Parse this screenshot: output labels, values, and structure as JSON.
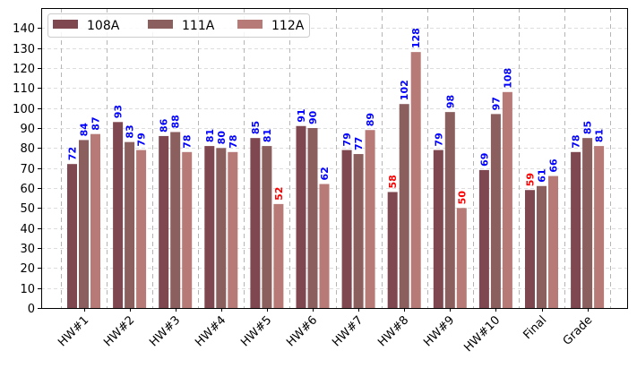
{
  "chart_data": {
    "type": "bar",
    "title": "",
    "xlabel": "",
    "ylabel": "",
    "ylim": [
      0,
      150
    ],
    "yticks": [
      0,
      10,
      20,
      30,
      40,
      50,
      60,
      70,
      80,
      90,
      100,
      110,
      120,
      130,
      140
    ],
    "grid": true,
    "legend_position": "top-left",
    "categories": [
      "HW#1",
      "HW#2",
      "HW#3",
      "HW#4",
      "HW#5",
      "HW#6",
      "HW#7",
      "HW#8",
      "HW#9",
      "HW#10",
      "Final",
      "Grade"
    ],
    "series": [
      {
        "name": "108A",
        "color": "#7f474f",
        "values": [
          72,
          93,
          86,
          81,
          85,
          91,
          79,
          58,
          79,
          69,
          59,
          78
        ]
      },
      {
        "name": "111A",
        "color": "#8c5f5f",
        "values": [
          84,
          83,
          88,
          80,
          81,
          90,
          77,
          102,
          98,
          97,
          61,
          85
        ]
      },
      {
        "name": "112A",
        "color": "#b77a76",
        "values": [
          87,
          79,
          78,
          78,
          52,
          62,
          89,
          128,
          50,
          108,
          66,
          81
        ]
      }
    ],
    "label_colors": {
      "normal": "#0000ff",
      "low": "#ff0000"
    },
    "low_threshold": 60
  }
}
